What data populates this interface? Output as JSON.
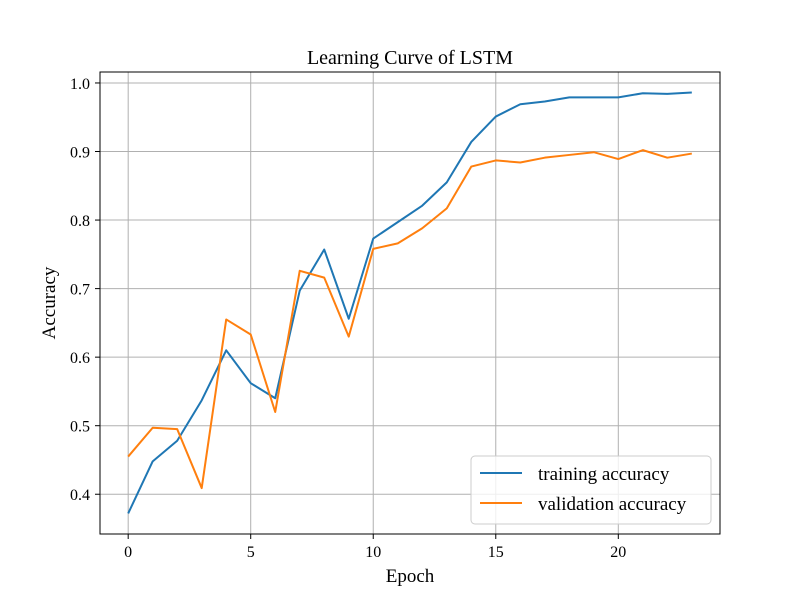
{
  "chart_data": {
    "type": "line",
    "title": "Learning Curve of LSTM",
    "xlabel": "Epoch",
    "ylabel": "Accuracy",
    "xlim": [
      -1.15,
      24.15
    ],
    "ylim": [
      0.342,
      1.016
    ],
    "x_ticks": [
      0,
      5,
      10,
      15,
      20
    ],
    "y_ticks": [
      0.4,
      0.5,
      0.6,
      0.7,
      0.8,
      0.9,
      1.0
    ],
    "x_tick_labels": [
      "0",
      "5",
      "10",
      "15",
      "20"
    ],
    "y_tick_labels": [
      "0.4",
      "0.5",
      "0.6",
      "0.7",
      "0.8",
      "0.9",
      "1.0"
    ],
    "grid": true,
    "legend_position": "lower-right",
    "x": [
      0,
      1,
      2,
      3,
      4,
      5,
      6,
      7,
      8,
      9,
      10,
      11,
      12,
      13,
      14,
      15,
      16,
      17,
      18,
      19,
      20,
      21,
      22,
      23
    ],
    "series": [
      {
        "name": "training accuracy",
        "color": "#1f77b4",
        "values": [
          0.372,
          0.448,
          0.478,
          0.537,
          0.61,
          0.562,
          0.54,
          0.697,
          0.757,
          0.656,
          0.773,
          0.797,
          0.821,
          0.855,
          0.914,
          0.951,
          0.969,
          0.973,
          0.979,
          0.979,
          0.979,
          0.985,
          0.984,
          0.986
        ]
      },
      {
        "name": "validation accuracy",
        "color": "#ff7f0e",
        "values": [
          0.455,
          0.497,
          0.495,
          0.409,
          0.655,
          0.633,
          0.52,
          0.726,
          0.716,
          0.63,
          0.758,
          0.766,
          0.788,
          0.817,
          0.878,
          0.887,
          0.884,
          0.891,
          0.895,
          0.899,
          0.889,
          0.902,
          0.891,
          0.897
        ]
      }
    ]
  }
}
